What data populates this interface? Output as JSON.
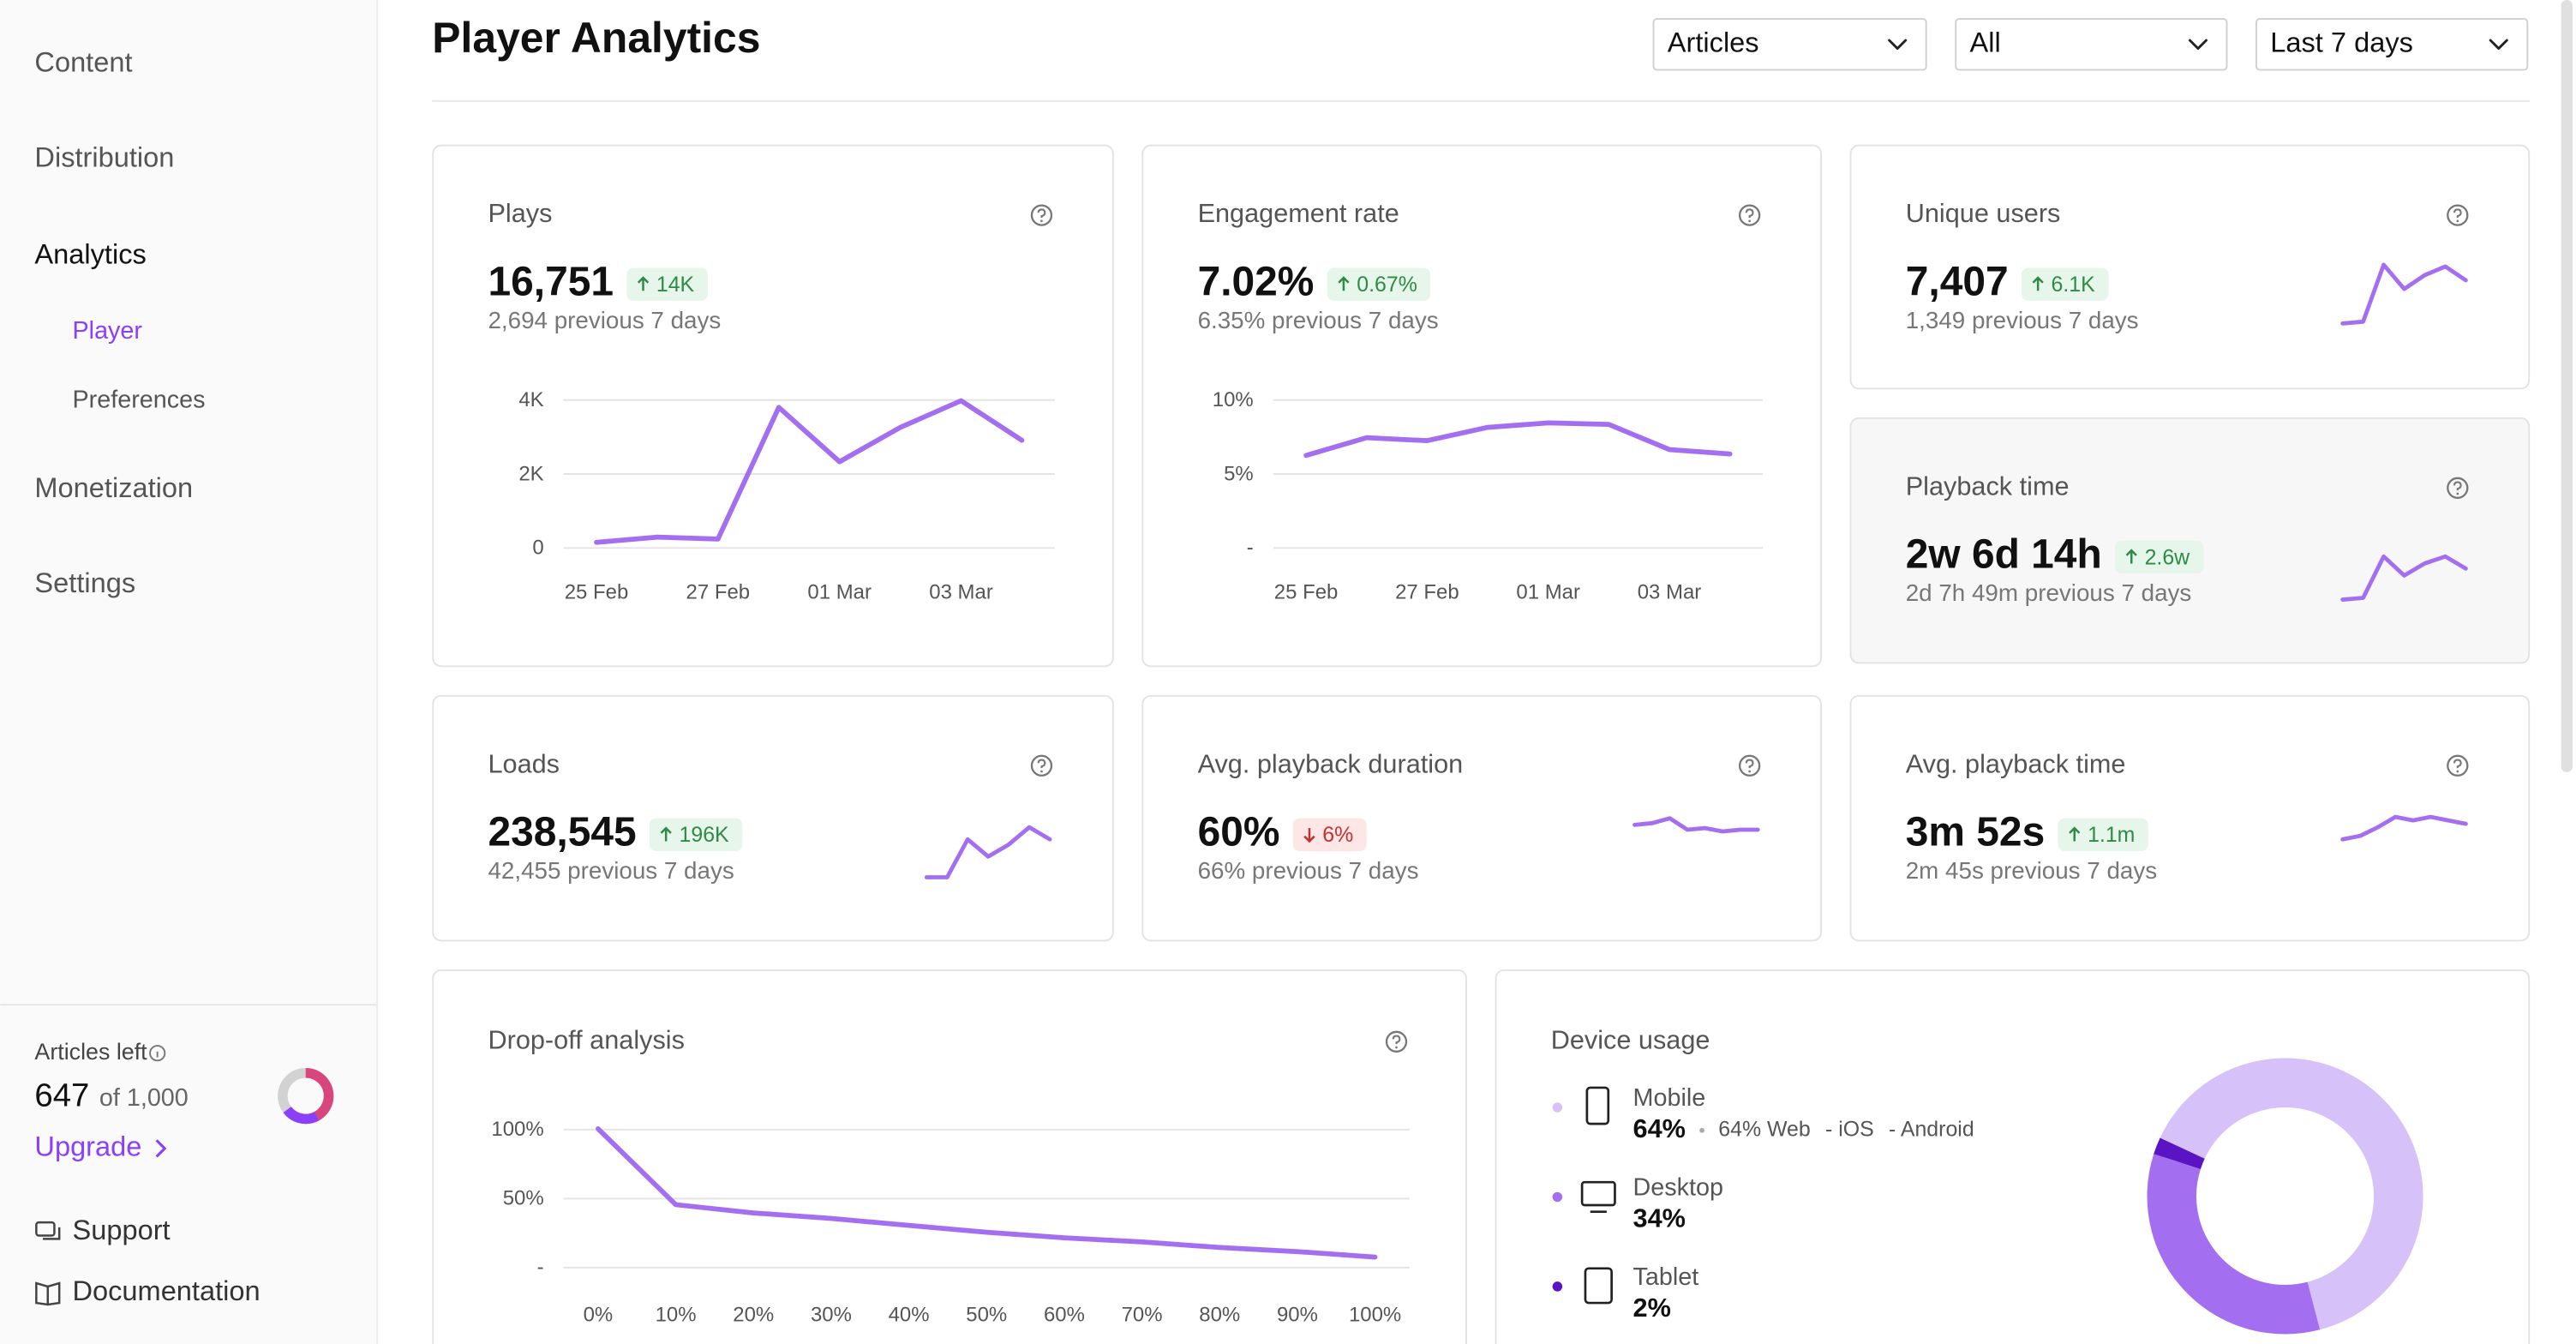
{
  "sidebar": {
    "nav": [
      {
        "label": "Content"
      },
      {
        "label": "Distribution"
      },
      {
        "label": "Analytics",
        "children": [
          {
            "label": "Player",
            "active": true
          },
          {
            "label": "Preferences"
          }
        ]
      },
      {
        "label": "Monetization"
      },
      {
        "label": "Settings"
      }
    ],
    "quota": {
      "title": "Articles left",
      "left": 647,
      "total": 1000,
      "total_label": "of 1,000",
      "action": "Upgrade"
    },
    "links": [
      "Support",
      "Documentation"
    ]
  },
  "header": {
    "title": "Player Analytics",
    "filters": [
      "Articles",
      "All",
      "Last 7 days"
    ]
  },
  "cards": [
    {
      "title": "Plays",
      "value": "16,751",
      "delta": "14K",
      "trend": "up",
      "previous": "2,694 previous 7 days",
      "chart": {
        "type": "line",
        "categories": [
          "25 Feb",
          null,
          "27 Feb",
          null,
          "01 Mar",
          null,
          "03 Mar",
          null
        ],
        "values": [
          130,
          270,
          220,
          3780,
          2310,
          3240,
          3960,
          2890
        ],
        "ylim": [
          0,
          4000
        ],
        "yticks": [
          0,
          {
            "value": 2000,
            "label": "2K"
          },
          {
            "value": 4000,
            "label": "4K"
          }
        ],
        "grid": true,
        "color": "#a46ef0"
      }
    },
    {
      "title": "Engagement rate",
      "value": "7.02%",
      "delta": "0.67%",
      "trend": "up",
      "previous": "6.35% previous 7 days",
      "chart": {
        "type": "line",
        "categories": [
          "25 Feb",
          null,
          "27 Feb",
          null,
          "01 Mar",
          null,
          "03 Mar",
          null
        ],
        "values": [
          6.2,
          7.4,
          7.2,
          8.1,
          8.4,
          8.3,
          6.6,
          6.3
        ],
        "ylim": [
          0,
          10
        ],
        "yticks": [
          {
            "value": 0,
            "label": "-"
          },
          {
            "value": 5,
            "label": "5%"
          },
          {
            "value": 10,
            "label": "10%"
          }
        ],
        "grid": true,
        "color": "#a46ef0"
      }
    },
    {
      "title": "Unique users",
      "value": "7,407",
      "delta": "6.1K",
      "trend": "up",
      "previous": "1,349 previous 7 days",
      "sparkline": {
        "values": [
          3,
          4,
          37,
          23,
          31,
          36,
          28
        ],
        "ylim": [
          0,
          40
        ],
        "color": "#a46ef0"
      }
    },
    {
      "title": "Playback time",
      "value": "2w 6d 14h",
      "delta": "2.6w",
      "trend": "up",
      "previous": "2d 7h 49m previous 7 days",
      "highlighted": true,
      "sparkline": {
        "values": [
          1,
          2,
          26,
          15,
          22,
          26,
          19
        ],
        "ylim": [
          0,
          40
        ],
        "color": "#a46ef0"
      }
    },
    {
      "title": "Loads",
      "value": "238,545",
      "delta": "196K",
      "trend": "up",
      "previous": "42,455 previous 7 days",
      "sparkline": {
        "values": [
          1,
          1,
          23,
          13,
          20,
          30,
          23
        ],
        "ylim": [
          0,
          40
        ],
        "color": "#a46ef0"
      }
    },
    {
      "title": "Avg. playback duration",
      "value": "60%",
      "delta": "6%",
      "trend": "down",
      "previous": "66% previous 7 days",
      "sparkline": {
        "values": [
          61.4,
          62.4,
          65.2,
          58.6,
          59.5,
          57.6,
          58.6,
          58.6
        ],
        "ylim": [
          30,
          70
        ],
        "color": "#a46ef0"
      }
    },
    {
      "title": "Avg. playback time",
      "value": "3m 52s",
      "delta": "1.1m",
      "trend": "up",
      "previous": "2m 45s previous 7 days",
      "sparkline": {
        "values": [
          23,
          25,
          30,
          36,
          34,
          36,
          34,
          32
        ],
        "ylim": [
          0,
          40
        ],
        "color": "#a46ef0"
      }
    }
  ],
  "dropoff": {
    "title": "Drop-off analysis",
    "chart": {
      "type": "line",
      "categories": [
        "0%",
        "10%",
        "20%",
        "30%",
        "40%",
        "50%",
        "60%",
        "70%",
        "80%",
        "90%",
        "100%"
      ],
      "values": [
        100,
        45,
        39,
        35,
        30,
        25,
        21,
        18,
        14,
        11,
        7
      ],
      "ylim": [
        0,
        100
      ],
      "yticks": [
        {
          "value": 0,
          "label": "-"
        },
        {
          "value": 50,
          "label": "50%"
        },
        {
          "value": 100,
          "label": "100%"
        }
      ],
      "grid": true,
      "color": "#a46ef0"
    }
  },
  "devices": {
    "title": "Device usage",
    "type": "donut",
    "items": [
      {
        "name": "Mobile",
        "value": 64,
        "value_label": "64%",
        "color": "#d6c1f8",
        "details": [
          "64% Web",
          "- iOS",
          "- Android"
        ]
      },
      {
        "name": "Desktop",
        "value": 34,
        "value_label": "34%",
        "color": "#a46ef0"
      },
      {
        "name": "Tablet",
        "value": 2,
        "value_label": "2%",
        "color": "#5b14c4"
      }
    ]
  }
}
